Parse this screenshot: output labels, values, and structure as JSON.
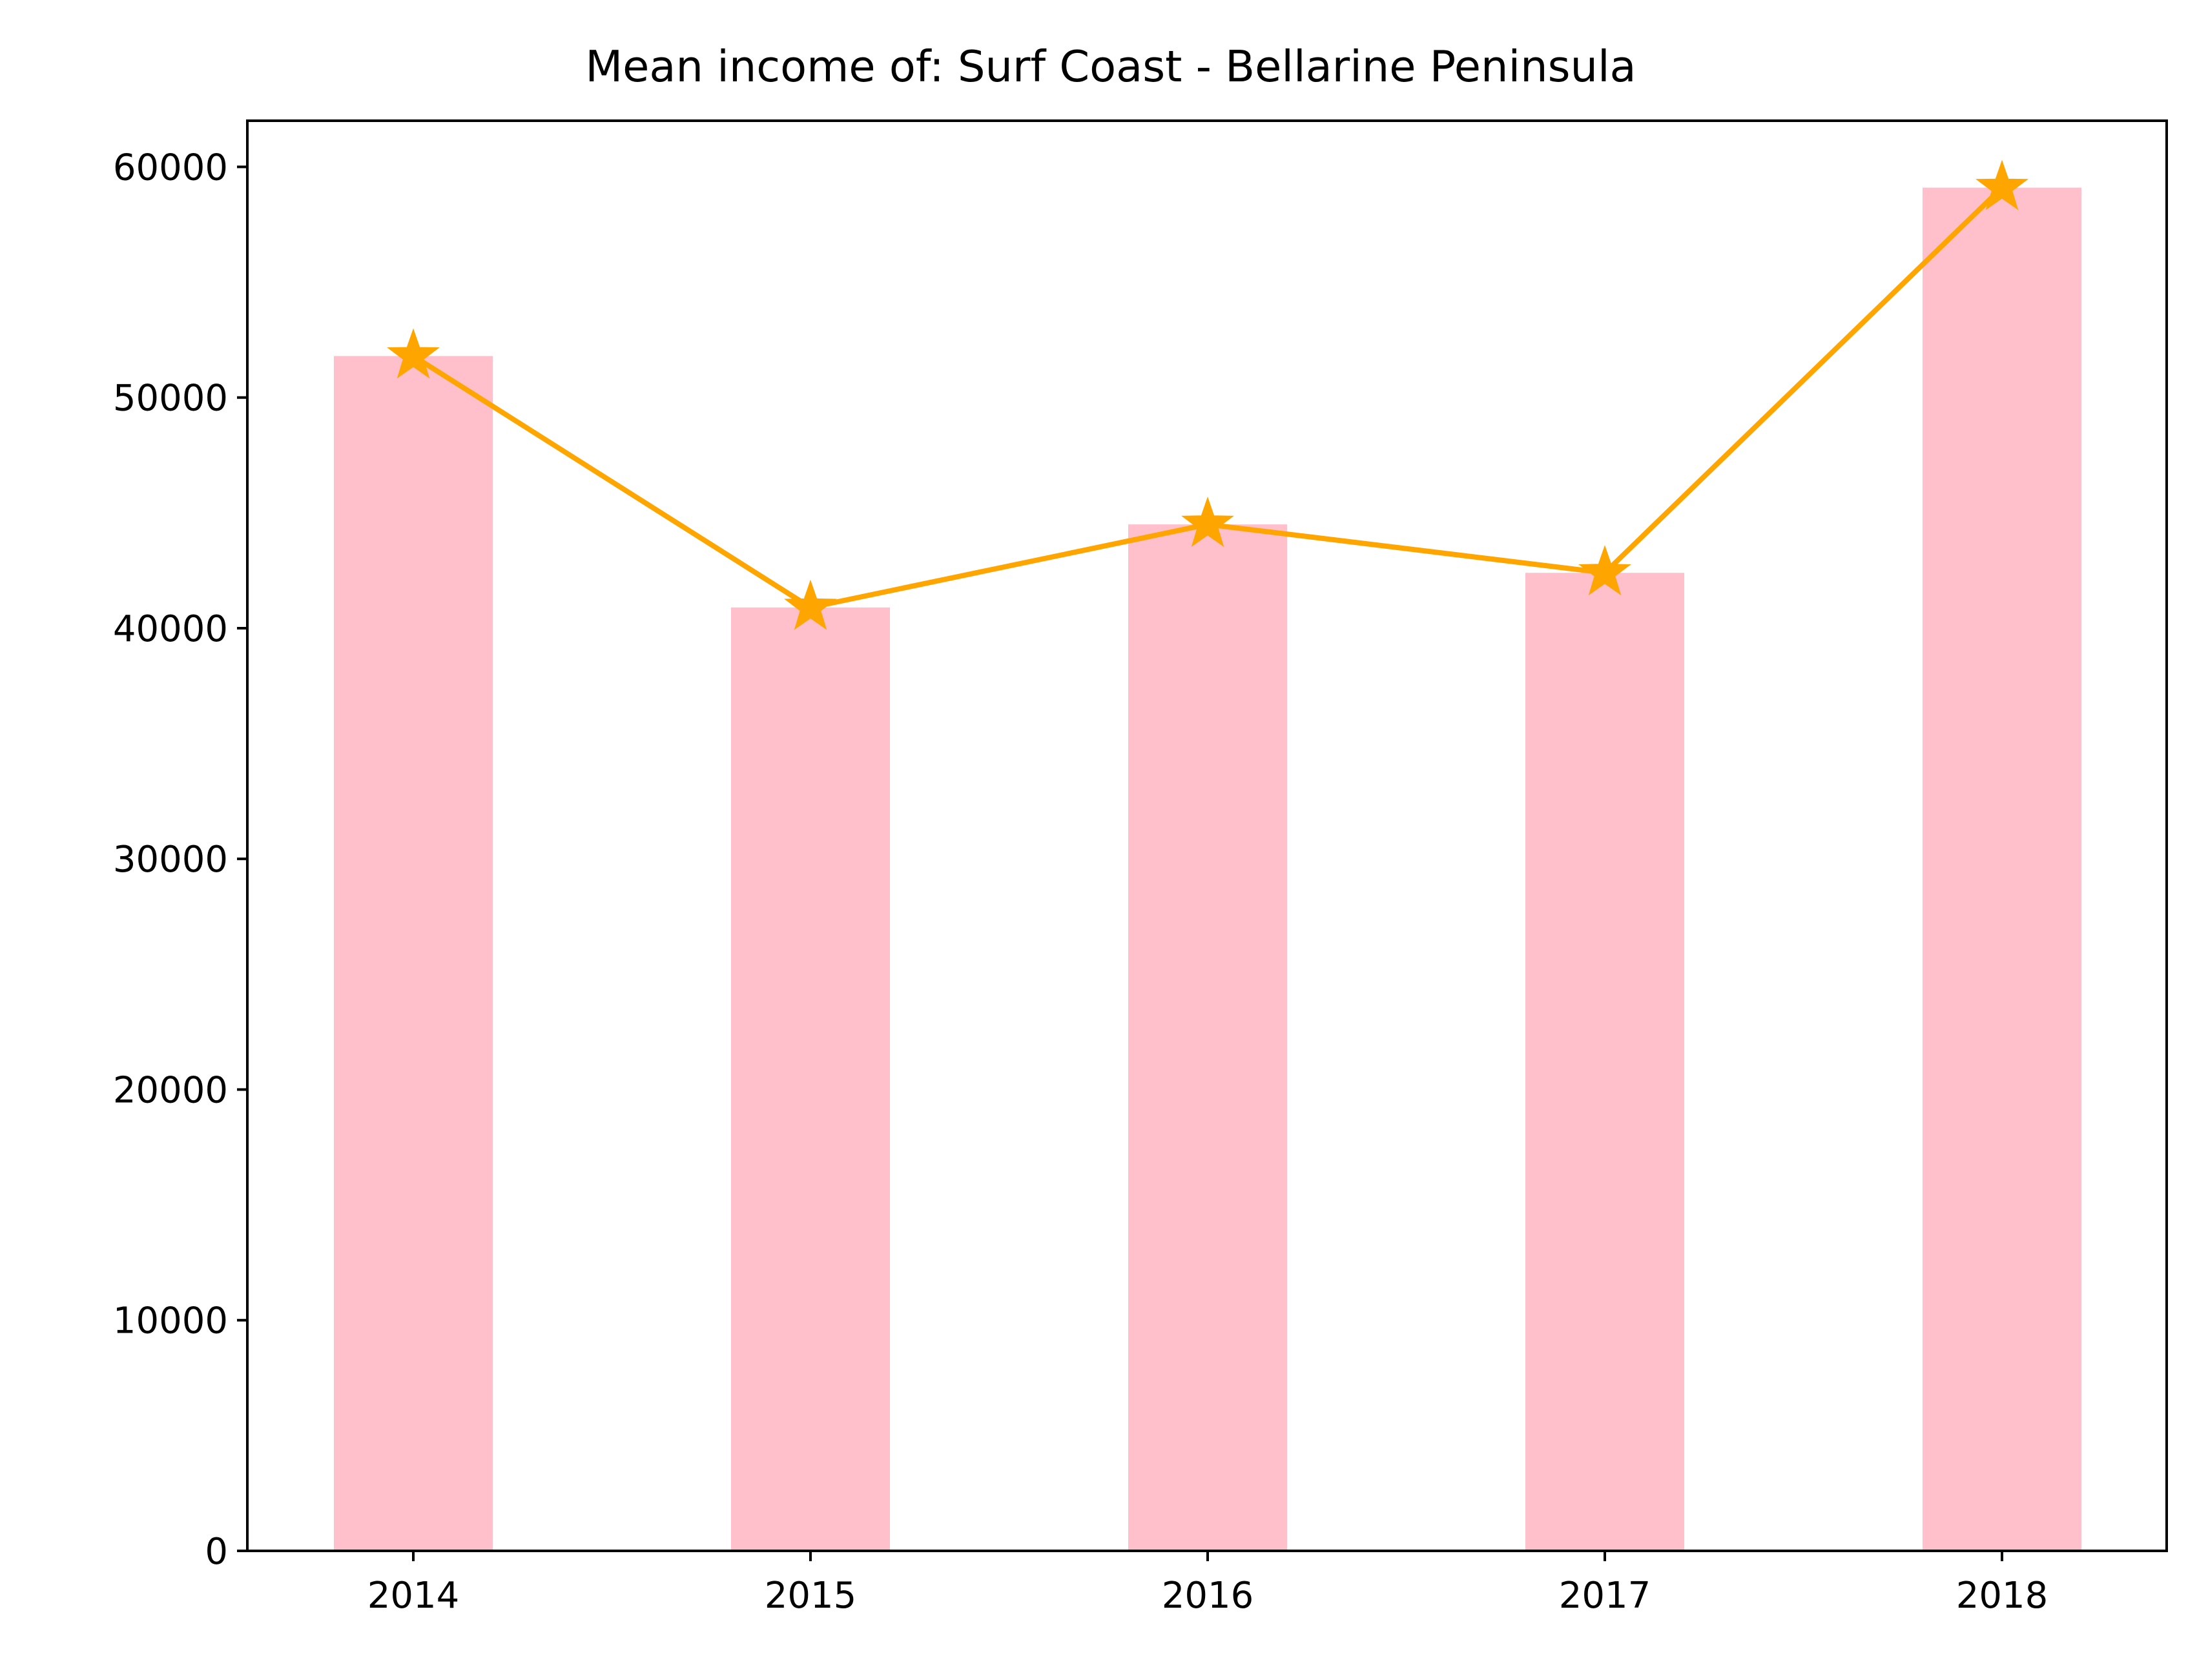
{
  "chart_data": {
    "type": "bar",
    "title": "Mean income of: Surf Coast - Bellarine Peninsula",
    "xlabel": "",
    "ylabel": "",
    "categories": [
      "2014",
      "2015",
      "2016",
      "2017",
      "2018"
    ],
    "series": [
      {
        "type": "bar",
        "values": [
          51800,
          40900,
          44500,
          42400,
          59100
        ],
        "color": "#ffc0cb"
      },
      {
        "type": "line",
        "marker": "star",
        "values": [
          51800,
          40900,
          44500,
          42400,
          59100
        ],
        "color": "#ffa500"
      }
    ],
    "ylim": [
      0,
      62000
    ],
    "yticks": [
      0,
      10000,
      20000,
      30000,
      40000,
      50000,
      60000
    ],
    "grid": false,
    "legend": "none"
  }
}
